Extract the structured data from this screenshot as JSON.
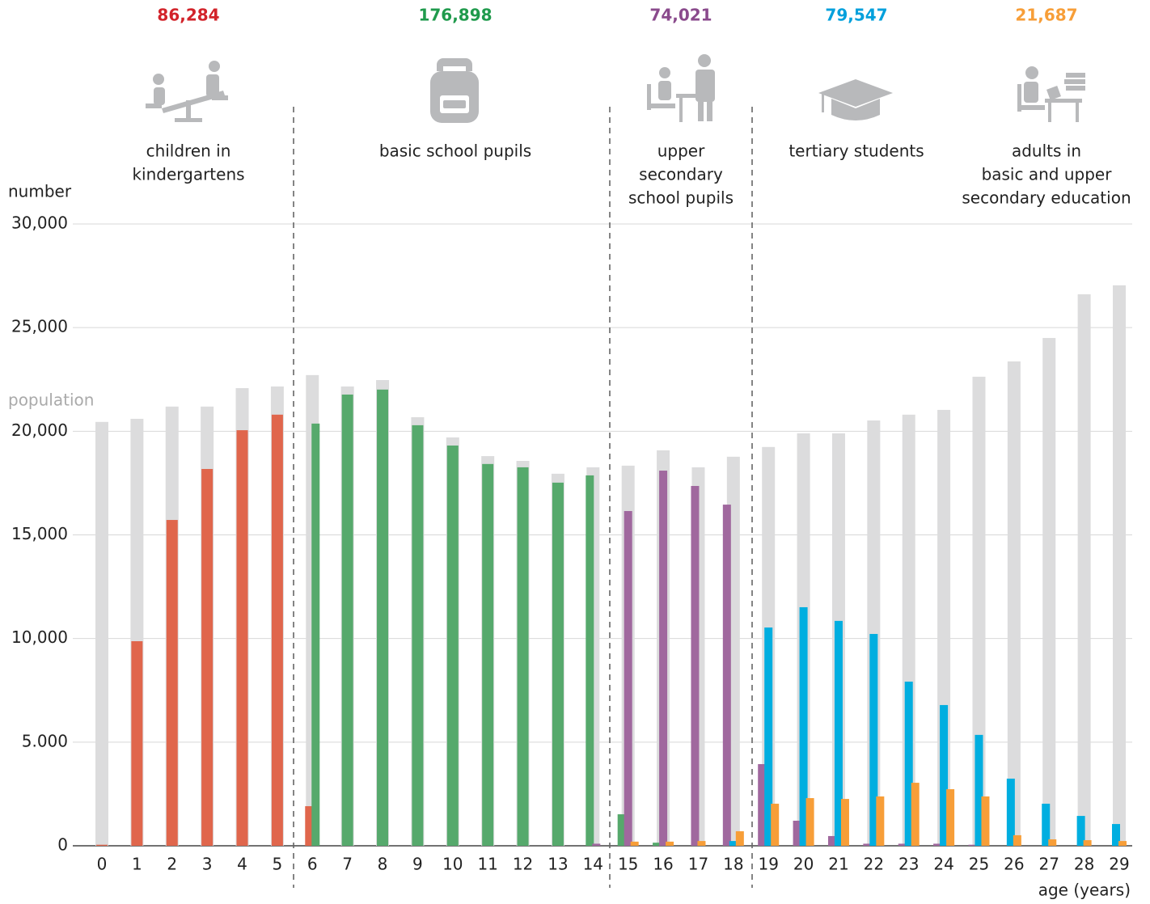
{
  "chart_data": {
    "type": "bar",
    "y_axis_label": "number",
    "x_axis_label": "age (years)",
    "annotation": "population",
    "categories": [
      "0",
      "1",
      "2",
      "3",
      "4",
      "5",
      "6",
      "7",
      "8",
      "9",
      "10",
      "11",
      "12",
      "13",
      "14",
      "15",
      "16",
      "17",
      "18",
      "19",
      "20",
      "21",
      "22",
      "23",
      "24",
      "25",
      "26",
      "27",
      "28",
      "29"
    ],
    "population": {
      "name": "population",
      "color": "#dcdcdd",
      "values": [
        20450,
        20600,
        21190,
        21190,
        22080,
        22160,
        22710,
        22160,
        22470,
        20680,
        19700,
        18800,
        18570,
        17950,
        18260,
        18340,
        19080,
        18260,
        18770,
        19240,
        19900,
        19900,
        20520,
        20800,
        21030,
        22630,
        23370,
        24500,
        26610,
        27040
      ]
    },
    "series": [
      {
        "name": [
          "children in",
          "kindergartens"
        ],
        "color": "#e0664c",
        "total": 86284,
        "total_label": "86,284",
        "total_color": "#d2232a",
        "values": [
          50,
          9870,
          15720,
          18180,
          20050,
          20800,
          1910,
          null,
          null,
          null,
          null,
          null,
          null,
          null,
          null,
          null,
          null,
          null,
          null,
          null,
          null,
          null,
          null,
          null,
          null,
          null,
          null,
          null,
          null,
          null
        ]
      },
      {
        "name": [
          "basic school pupils"
        ],
        "color": "#56a96c",
        "total": 176898,
        "total_label": "176,898",
        "total_color": "#1f9a4c",
        "values": [
          null,
          null,
          null,
          null,
          null,
          null,
          20370,
          21770,
          22010,
          20290,
          19310,
          18420,
          18260,
          17520,
          17870,
          1520,
          150,
          null,
          null,
          null,
          null,
          null,
          null,
          null,
          null,
          null,
          null,
          null,
          null,
          null
        ]
      },
      {
        "name": [
          "upper",
          "secondary",
          "school pupils"
        ],
        "color": "#a0689e",
        "total": 74021,
        "total_label": "74,021",
        "total_color": "#8a4a8c",
        "values": [
          null,
          null,
          null,
          null,
          null,
          null,
          null,
          null,
          null,
          null,
          null,
          null,
          null,
          null,
          100,
          16150,
          18100,
          17360,
          16460,
          3940,
          1210,
          470,
          100,
          100,
          100,
          50,
          null,
          null,
          null,
          null
        ]
      },
      {
        "name": [
          "tertiary students"
        ],
        "color": "#00aee0",
        "total": 79547,
        "total_label": "79,547",
        "total_color": "#00a0dc",
        "values": [
          null,
          null,
          null,
          null,
          null,
          null,
          null,
          null,
          null,
          null,
          null,
          null,
          null,
          null,
          null,
          null,
          null,
          null,
          230,
          10530,
          11510,
          10850,
          10220,
          7920,
          6790,
          5350,
          3240,
          2030,
          1440,
          1050
        ]
      },
      {
        "name": [
          "adults in",
          "basic and upper",
          "secondary education"
        ],
        "color": "#f79e38",
        "total": 21687,
        "total_label": "21,687",
        "total_color": "#f79e38",
        "values": [
          null,
          null,
          null,
          null,
          null,
          null,
          null,
          null,
          null,
          null,
          null,
          null,
          null,
          null,
          null,
          200,
          200,
          230,
          700,
          2030,
          2300,
          2260,
          2380,
          3040,
          2730,
          2380,
          510,
          310,
          270,
          230
        ]
      }
    ],
    "ylim": [
      0,
      30000
    ],
    "yticks": [
      0,
      {
        "value": 5000,
        "label": "5.000"
      },
      {
        "value": 10000,
        "label": "10,000"
      },
      {
        "value": 15000,
        "label": "15,000"
      },
      {
        "value": 20000,
        "label": "20,000"
      },
      {
        "value": 25000,
        "label": "25,000"
      },
      {
        "value": 30000,
        "label": "30,000"
      }
    ],
    "grid": true
  }
}
